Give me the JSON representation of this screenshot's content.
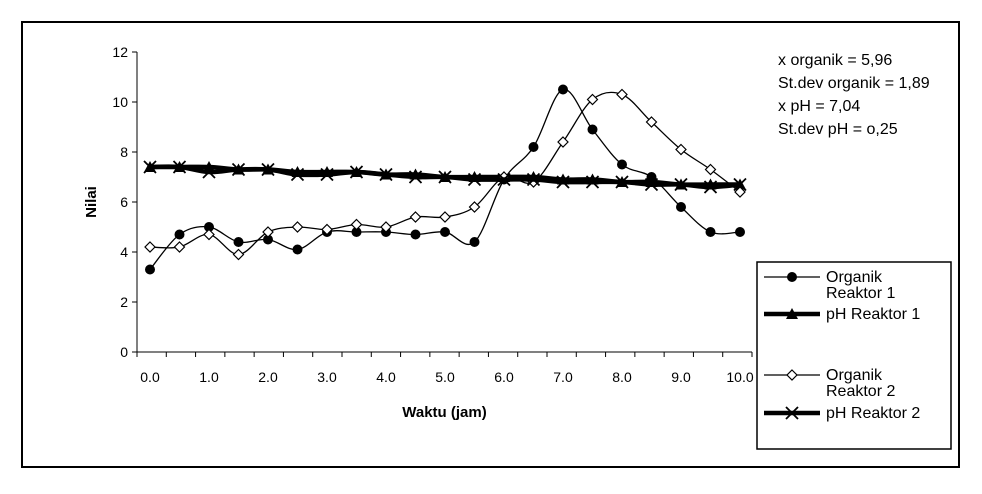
{
  "chart_data": {
    "type": "line",
    "title": "",
    "xlabel": "Waktu (jam)",
    "ylabel": "Nilai",
    "xlim": [
      0,
      10
    ],
    "ylim": [
      0,
      12
    ],
    "x_ticks": [
      "0.0",
      "1.0",
      "2.0",
      "3.0",
      "4.0",
      "5.0",
      "6.0",
      "7.0",
      "8.0",
      "9.0",
      "10.0"
    ],
    "y_ticks": [
      "0",
      "2",
      "4",
      "6",
      "8",
      "10",
      "12"
    ],
    "grid": false,
    "legend_position": "right",
    "annotations": [
      "x organik = 5,96",
      "St.dev organik = 1,89",
      "x pH = 7,04",
      "St.dev pH = o,25"
    ],
    "x": [
      0,
      0.5,
      1,
      1.5,
      2,
      2.5,
      3,
      3.5,
      4,
      4.5,
      5,
      5.5,
      6,
      6.5,
      7,
      7.5,
      8,
      8.5,
      9,
      9.5,
      10
    ],
    "series": [
      {
        "name": "Organik Reaktor 1",
        "legend_lines": [
          "Organik",
          "Reaktor 1"
        ],
        "marker": "circle",
        "line": "thin",
        "values": [
          3.3,
          4.7,
          5.0,
          4.4,
          4.5,
          4.1,
          4.8,
          4.8,
          4.8,
          4.7,
          4.8,
          4.4,
          6.9,
          8.2,
          10.5,
          8.9,
          7.5,
          7.0,
          5.8,
          4.8,
          4.8
        ]
      },
      {
        "name": "pH Reaktor 1",
        "legend_lines": [
          "pH Reaktor 1"
        ],
        "marker": "triangle",
        "line": "thick",
        "values": [
          7.4,
          7.4,
          7.4,
          7.3,
          7.3,
          7.2,
          7.2,
          7.2,
          7.1,
          7.1,
          7.0,
          7.0,
          7.0,
          7.0,
          6.9,
          6.9,
          6.8,
          6.8,
          6.7,
          6.7,
          6.7
        ]
      },
      {
        "name": "Organik Reaktor 2",
        "legend_lines": [
          "Organik",
          "Reaktor 2"
        ],
        "marker": "diamond",
        "line": "thin",
        "values": [
          4.2,
          4.2,
          4.7,
          3.9,
          4.8,
          5.0,
          4.9,
          5.1,
          5.0,
          5.4,
          5.4,
          5.8,
          7.0,
          6.8,
          8.4,
          10.1,
          10.3,
          9.2,
          8.1,
          7.3,
          6.4
        ]
      },
      {
        "name": "pH Reaktor 2",
        "legend_lines": [
          "pH Reaktor 2"
        ],
        "marker": "x",
        "line": "thick",
        "values": [
          7.4,
          7.4,
          7.2,
          7.3,
          7.3,
          7.1,
          7.1,
          7.2,
          7.1,
          7.0,
          7.0,
          6.9,
          6.9,
          6.9,
          6.8,
          6.8,
          6.8,
          6.7,
          6.7,
          6.6,
          6.7
        ]
      }
    ]
  }
}
